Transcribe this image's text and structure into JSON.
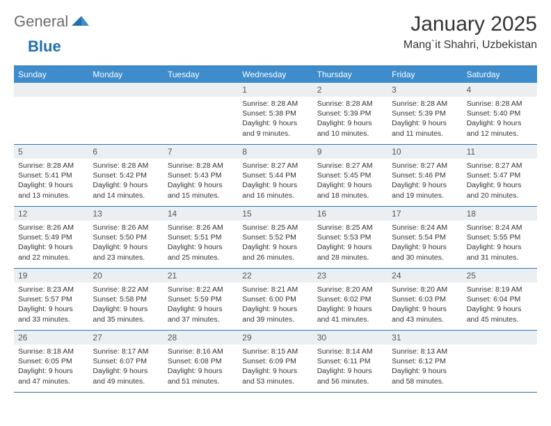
{
  "logo": {
    "general": "General",
    "blue": "Blue"
  },
  "title": "January 2025",
  "location": "Mang`it Shahri, Uzbekistan",
  "colors": {
    "header_bg": "#3e8ccc",
    "header_text": "#ffffff",
    "rule": "#2c73b5",
    "daynum_bg": "#eceff1",
    "text": "#333333",
    "logo_gray": "#6b6b6b",
    "logo_blue": "#1f6fb2"
  },
  "day_names": [
    "Sunday",
    "Monday",
    "Tuesday",
    "Wednesday",
    "Thursday",
    "Friday",
    "Saturday"
  ],
  "weeks": [
    [
      {
        "n": "",
        "sr": "",
        "ss": "",
        "dl": ""
      },
      {
        "n": "",
        "sr": "",
        "ss": "",
        "dl": ""
      },
      {
        "n": "",
        "sr": "",
        "ss": "",
        "dl": ""
      },
      {
        "n": "1",
        "sr": "8:28 AM",
        "ss": "5:38 PM",
        "dl": "9 hours and 9 minutes."
      },
      {
        "n": "2",
        "sr": "8:28 AM",
        "ss": "5:39 PM",
        "dl": "9 hours and 10 minutes."
      },
      {
        "n": "3",
        "sr": "8:28 AM",
        "ss": "5:39 PM",
        "dl": "9 hours and 11 minutes."
      },
      {
        "n": "4",
        "sr": "8:28 AM",
        "ss": "5:40 PM",
        "dl": "9 hours and 12 minutes."
      }
    ],
    [
      {
        "n": "5",
        "sr": "8:28 AM",
        "ss": "5:41 PM",
        "dl": "9 hours and 13 minutes."
      },
      {
        "n": "6",
        "sr": "8:28 AM",
        "ss": "5:42 PM",
        "dl": "9 hours and 14 minutes."
      },
      {
        "n": "7",
        "sr": "8:28 AM",
        "ss": "5:43 PM",
        "dl": "9 hours and 15 minutes."
      },
      {
        "n": "8",
        "sr": "8:27 AM",
        "ss": "5:44 PM",
        "dl": "9 hours and 16 minutes."
      },
      {
        "n": "9",
        "sr": "8:27 AM",
        "ss": "5:45 PM",
        "dl": "9 hours and 18 minutes."
      },
      {
        "n": "10",
        "sr": "8:27 AM",
        "ss": "5:46 PM",
        "dl": "9 hours and 19 minutes."
      },
      {
        "n": "11",
        "sr": "8:27 AM",
        "ss": "5:47 PM",
        "dl": "9 hours and 20 minutes."
      }
    ],
    [
      {
        "n": "12",
        "sr": "8:26 AM",
        "ss": "5:49 PM",
        "dl": "9 hours and 22 minutes."
      },
      {
        "n": "13",
        "sr": "8:26 AM",
        "ss": "5:50 PM",
        "dl": "9 hours and 23 minutes."
      },
      {
        "n": "14",
        "sr": "8:26 AM",
        "ss": "5:51 PM",
        "dl": "9 hours and 25 minutes."
      },
      {
        "n": "15",
        "sr": "8:25 AM",
        "ss": "5:52 PM",
        "dl": "9 hours and 26 minutes."
      },
      {
        "n": "16",
        "sr": "8:25 AM",
        "ss": "5:53 PM",
        "dl": "9 hours and 28 minutes."
      },
      {
        "n": "17",
        "sr": "8:24 AM",
        "ss": "5:54 PM",
        "dl": "9 hours and 30 minutes."
      },
      {
        "n": "18",
        "sr": "8:24 AM",
        "ss": "5:55 PM",
        "dl": "9 hours and 31 minutes."
      }
    ],
    [
      {
        "n": "19",
        "sr": "8:23 AM",
        "ss": "5:57 PM",
        "dl": "9 hours and 33 minutes."
      },
      {
        "n": "20",
        "sr": "8:22 AM",
        "ss": "5:58 PM",
        "dl": "9 hours and 35 minutes."
      },
      {
        "n": "21",
        "sr": "8:22 AM",
        "ss": "5:59 PM",
        "dl": "9 hours and 37 minutes."
      },
      {
        "n": "22",
        "sr": "8:21 AM",
        "ss": "6:00 PM",
        "dl": "9 hours and 39 minutes."
      },
      {
        "n": "23",
        "sr": "8:20 AM",
        "ss": "6:02 PM",
        "dl": "9 hours and 41 minutes."
      },
      {
        "n": "24",
        "sr": "8:20 AM",
        "ss": "6:03 PM",
        "dl": "9 hours and 43 minutes."
      },
      {
        "n": "25",
        "sr": "8:19 AM",
        "ss": "6:04 PM",
        "dl": "9 hours and 45 minutes."
      }
    ],
    [
      {
        "n": "26",
        "sr": "8:18 AM",
        "ss": "6:05 PM",
        "dl": "9 hours and 47 minutes."
      },
      {
        "n": "27",
        "sr": "8:17 AM",
        "ss": "6:07 PM",
        "dl": "9 hours and 49 minutes."
      },
      {
        "n": "28",
        "sr": "8:16 AM",
        "ss": "6:08 PM",
        "dl": "9 hours and 51 minutes."
      },
      {
        "n": "29",
        "sr": "8:15 AM",
        "ss": "6:09 PM",
        "dl": "9 hours and 53 minutes."
      },
      {
        "n": "30",
        "sr": "8:14 AM",
        "ss": "6:11 PM",
        "dl": "9 hours and 56 minutes."
      },
      {
        "n": "31",
        "sr": "8:13 AM",
        "ss": "6:12 PM",
        "dl": "9 hours and 58 minutes."
      },
      {
        "n": "",
        "sr": "",
        "ss": "",
        "dl": ""
      }
    ]
  ],
  "labels": {
    "sunrise": "Sunrise: ",
    "sunset": "Sunset: ",
    "daylight": "Daylight: "
  }
}
